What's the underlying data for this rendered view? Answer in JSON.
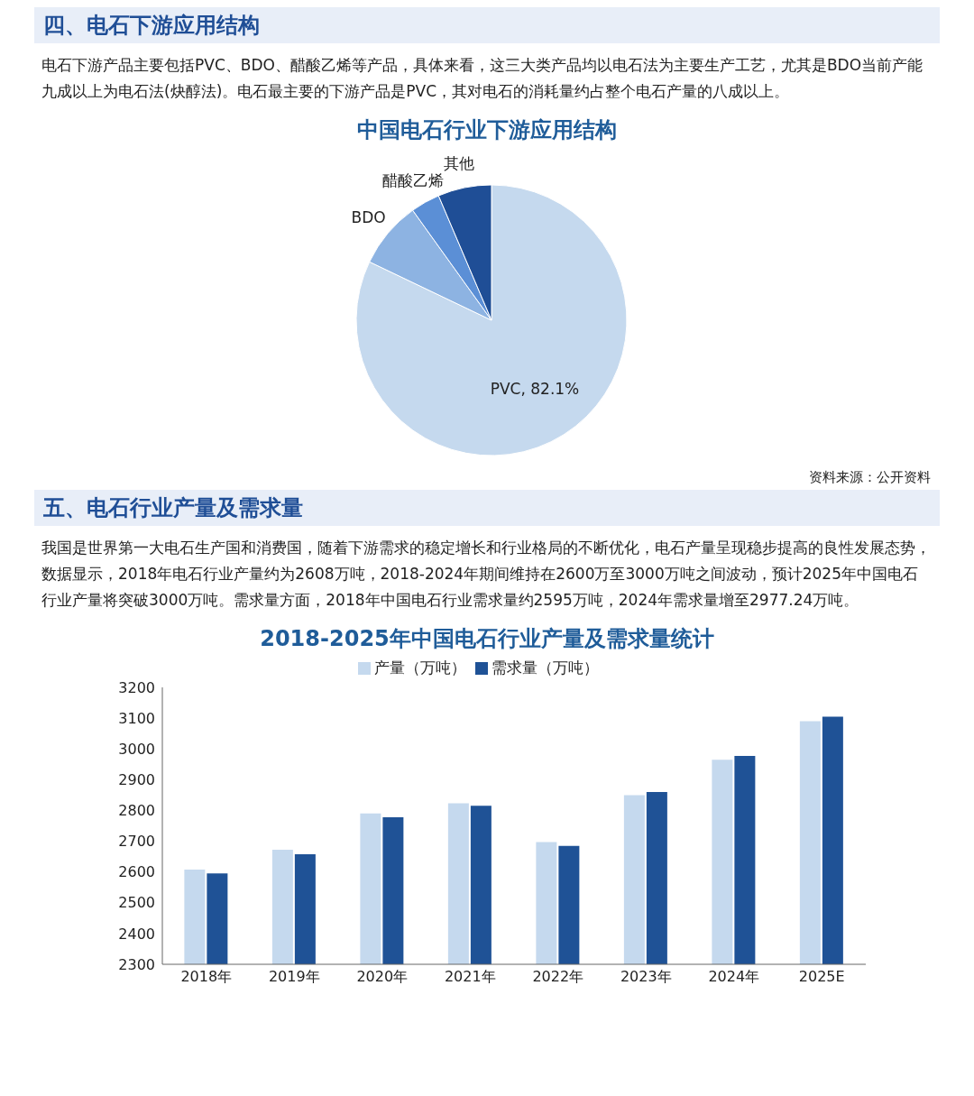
{
  "chart_data": [
    {
      "type": "pie",
      "title": "中国电石行业下游应用结构",
      "annotations": [
        "四、电石下游应用结构",
        "电石下游产品主要包括PVC、BDO、醋酸乙烯等产品，具体来看，这三大类产品均以电石法为主要生产工艺，尤其是BDO当前产能九成以上为电石法(炔醇法)。电石最主要的下游产品是PVC，其对电石的消耗量约占整个电石产量的八成以上。",
        "资料来源：公开资料"
      ],
      "categories": [
        "PVC",
        "BDO",
        "醋酸乙烯",
        "其他"
      ],
      "values": [
        82.1,
        8.0,
        3.5,
        6.4
      ],
      "value_labels": [
        "82.1%",
        null,
        null,
        null
      ],
      "colors": [
        "#c5d9ee",
        "#8db3e2",
        "#5b8fd6",
        "#1f4e96"
      ]
    },
    {
      "type": "bar",
      "title": "2018-2025年中国电石行业产量及需求量统计",
      "annotations": [
        "五、电石行业产量及需求量",
        "我国是世界第一大电石生产国和消费国，随着下游需求的稳定增长和行业格局的不断优化，电石产量呈现稳步提高的良性发展态势，数据显示，2018年电石行业产量约为2608万吨，2018-2024年期间维持在2600万至3000万吨之间波动，预计2025年中国电石行业产量将突破3000万吨。需求量方面，2018年中国电石行业需求量约2595万吨，2024年需求量增至2977.24万吨。"
      ],
      "categories": [
        "2018年",
        "2019年",
        "2020年",
        "2021年",
        "2022年",
        "2023年",
        "2024年",
        "2025E"
      ],
      "series": [
        {
          "name": "产量（万吨）",
          "color": "#c5d9ee",
          "values": [
            2608,
            2672,
            2790,
            2823,
            2697,
            2850,
            2965,
            3090
          ]
        },
        {
          "name": "需求量（万吨）",
          "color": "#1f5296",
          "values": [
            2595,
            2658,
            2778,
            2815,
            2685,
            2860,
            2977,
            3105
          ]
        }
      ],
      "ylim": [
        2300,
        3200
      ],
      "yticks": [
        2300,
        2400,
        2500,
        2600,
        2700,
        2800,
        2900,
        3000,
        3100,
        3200
      ],
      "legend": "top"
    }
  ]
}
